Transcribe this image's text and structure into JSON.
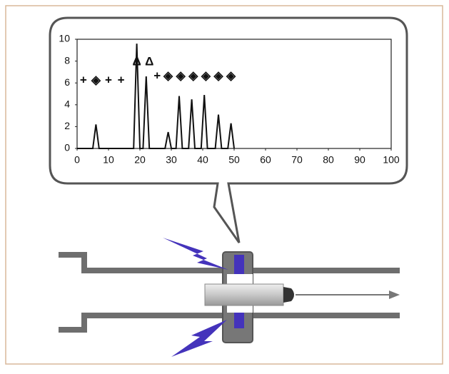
{
  "chart_data": {
    "type": "line",
    "x": [
      0,
      5,
      6,
      7,
      18,
      19,
      20,
      21,
      22,
      23,
      28,
      29,
      30,
      31.5,
      32.5,
      33.5,
      35.5,
      36.5,
      37.5,
      39.5,
      40.5,
      41.5,
      44,
      45,
      46,
      48,
      49,
      50
    ],
    "values": [
      0,
      0,
      2.2,
      0,
      0,
      9.6,
      0,
      0,
      6.6,
      0,
      0,
      1.5,
      0,
      0,
      4.8,
      0,
      0,
      4.5,
      0,
      0,
      4.9,
      0,
      0,
      3.1,
      0,
      0,
      2.3,
      0
    ],
    "color": "#111111",
    "xlim": [
      0,
      100
    ],
    "xticks": [
      0,
      10,
      20,
      30,
      40,
      50,
      60,
      70,
      80,
      90,
      100
    ],
    "ylim": [
      0,
      10
    ],
    "yticks": [
      0,
      2,
      4,
      6,
      8,
      10
    ],
    "markers": [
      {
        "symbol": "+",
        "x": 2,
        "y": 6.2
      },
      {
        "symbol": "◈",
        "x": 6,
        "y": 6.2
      },
      {
        "symbol": "+",
        "x": 10,
        "y": 6.2
      },
      {
        "symbol": "+",
        "x": 14,
        "y": 6.2
      },
      {
        "symbol": "Δ",
        "x": 19,
        "y": 7.9
      },
      {
        "symbol": "Δ",
        "x": 23,
        "y": 7.9
      },
      {
        "symbol": "+",
        "x": 25.5,
        "y": 6.6
      },
      {
        "symbol": "◈",
        "x": 29,
        "y": 6.6
      },
      {
        "symbol": "◈",
        "x": 33,
        "y": 6.6
      },
      {
        "symbol": "◈",
        "x": 37,
        "y": 6.6
      },
      {
        "symbol": "◈",
        "x": 41,
        "y": 6.6
      },
      {
        "symbol": "◈",
        "x": 45,
        "y": 6.6
      },
      {
        "symbol": "◈",
        "x": 49,
        "y": 6.6
      }
    ]
  }
}
